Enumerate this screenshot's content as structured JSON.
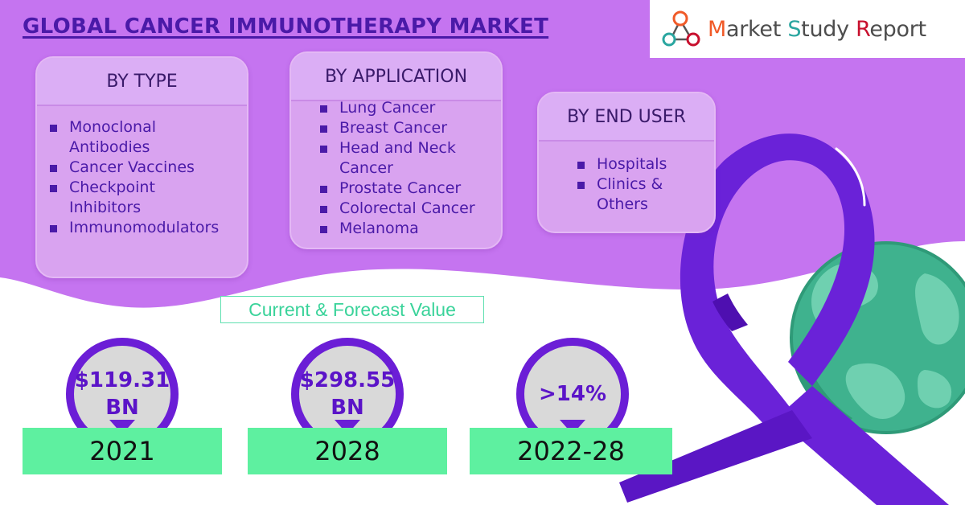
{
  "title": "GLOBAL CANCER IMMUNOTHERAPY MARKET",
  "logo": {
    "word1": "Market",
    "word2": "Study",
    "word3": "Report"
  },
  "colors": {
    "purple_band": "#c574f0",
    "title": "#4a1aa8",
    "ribbon": "#6a22d8",
    "accent_green": "#5ef0a0",
    "globe": "#3fb28e"
  },
  "segments": {
    "by_type": {
      "heading": "BY TYPE",
      "items": [
        [
          "Monoclonal",
          "Antibodies"
        ],
        [
          "Cancer Vaccines"
        ],
        [
          "Checkpoint",
          "Inhibitors"
        ],
        [
          "Immunomodulators"
        ]
      ]
    },
    "by_application": {
      "heading": "BY APPLICATION",
      "items": [
        [
          "Lung Cancer"
        ],
        [
          "Breast Cancer"
        ],
        [
          "Head and Neck",
          "Cancer"
        ],
        [
          "Prostate Cancer"
        ],
        [
          "Colorectal Cancer"
        ],
        [
          "Melanoma"
        ]
      ]
    },
    "by_end_user": {
      "heading": "BY END USER",
      "items": [
        [
          "Hospitals"
        ],
        [
          "Clinics &",
          "Others"
        ]
      ]
    }
  },
  "forecast_label": "Current & Forecast Value",
  "stats": [
    {
      "value_line1": "$119.31",
      "value_line2": "BN",
      "year": "2021"
    },
    {
      "value_line1": "$298.55",
      "value_line2": "BN",
      "year": "2028"
    },
    {
      "value_line1": ">14%",
      "value_line2": "",
      "year": "2022-28"
    }
  ]
}
